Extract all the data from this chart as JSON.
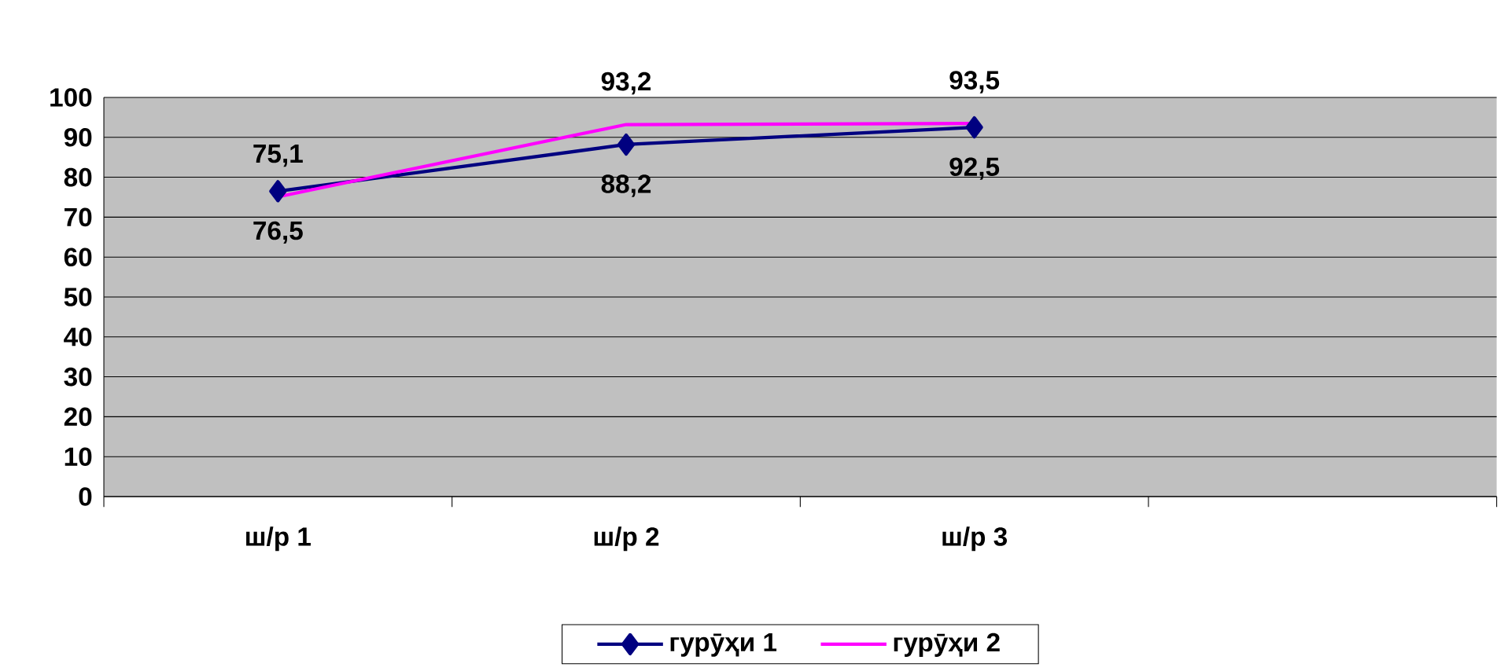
{
  "chart_data": {
    "type": "line",
    "categories": [
      "ш/р 1",
      "ш/р 2",
      "ш/р 3",
      null
    ],
    "series": [
      {
        "name": "гурӯҳи 1",
        "color": "#000080",
        "marker": "diamond",
        "values": [
          76.5,
          88.2,
          92.5,
          null
        ],
        "value_labels": [
          "76,5",
          "88,2",
          "92,5",
          null
        ]
      },
      {
        "name": "гурӯҳи 2",
        "color": "#ff00ff",
        "marker": "none",
        "values": [
          75.1,
          93.2,
          93.5,
          null
        ],
        "value_labels": [
          "75,1",
          "93,2",
          "93,5",
          null
        ]
      }
    ],
    "ylim": [
      0,
      100
    ],
    "yticks": [
      0,
      10,
      20,
      30,
      40,
      50,
      60,
      70,
      80,
      90,
      100
    ],
    "grid": "y",
    "legend": "bottom"
  }
}
